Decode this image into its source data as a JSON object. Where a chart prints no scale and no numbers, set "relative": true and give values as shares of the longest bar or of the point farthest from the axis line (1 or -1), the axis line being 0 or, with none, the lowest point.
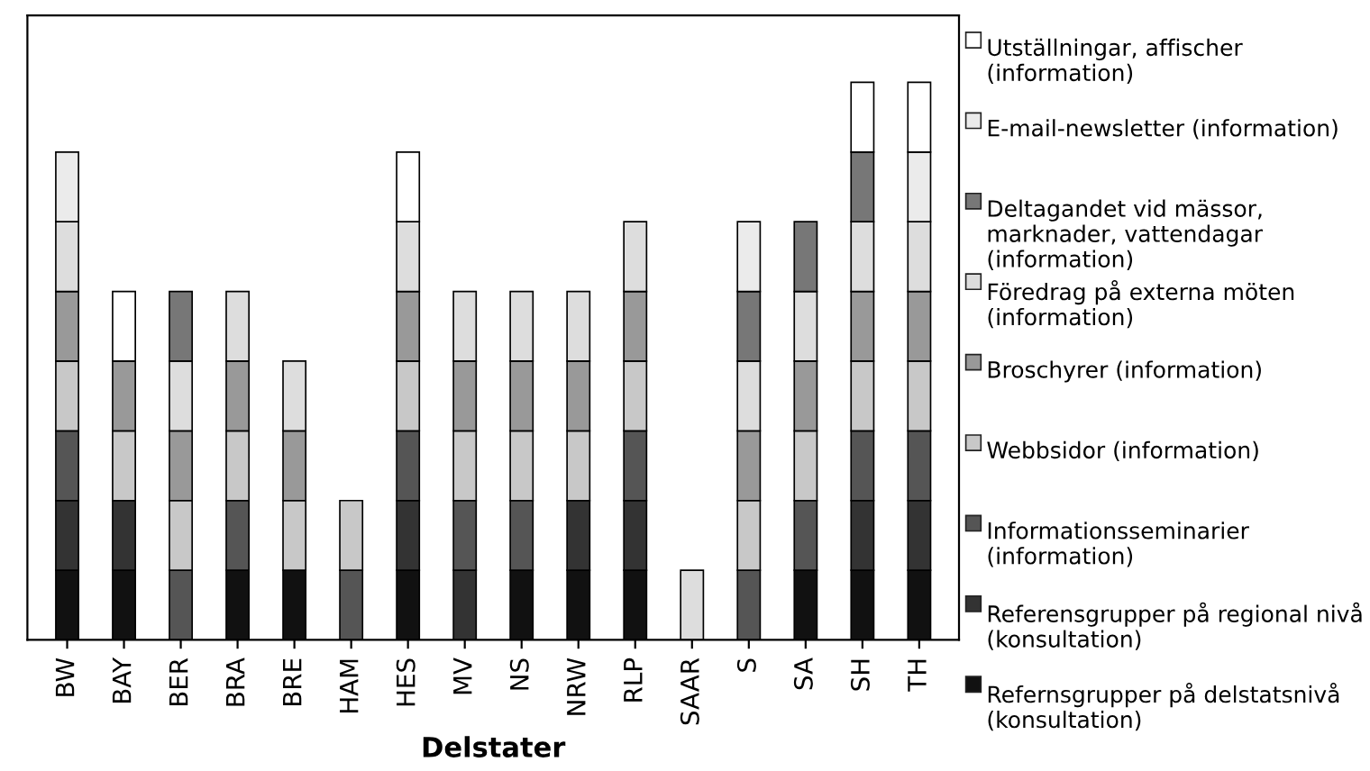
{
  "chart_data": {
    "type": "bar",
    "stacked": true,
    "relative": true,
    "xlabel": "Delstater",
    "legend": "right",
    "grid": false,
    "categories": [
      "BW",
      "BAY",
      "BER",
      "BRA",
      "BRE",
      "HAM",
      "HES",
      "MV",
      "NS",
      "NRW",
      "RLP",
      "SAAR",
      "S",
      "SA",
      "SH",
      "TH"
    ],
    "series": [
      {
        "name": "Refernsgrupper på delstatsnivå (konsultation)",
        "color": "#111111",
        "values": [
          0.125,
          0.125,
          0,
          0.125,
          0.125,
          0,
          0.125,
          0,
          0.125,
          0.125,
          0.125,
          0,
          0,
          0.125,
          0.125,
          0.125
        ]
      },
      {
        "name": "Referensgrupper på regional nivå (konsultation)",
        "color": "#333333",
        "values": [
          0.125,
          0.125,
          0,
          0,
          0,
          0,
          0.125,
          0.125,
          0,
          0.125,
          0.125,
          0,
          0,
          0,
          0.125,
          0.125
        ]
      },
      {
        "name": "Informationsseminarier (information)",
        "color": "#555555",
        "values": [
          0.125,
          0,
          0.125,
          0.125,
          0,
          0.125,
          0.125,
          0.125,
          0.125,
          0,
          0.125,
          0,
          0.125,
          0.125,
          0.125,
          0.125
        ]
      },
      {
        "name": "Webbsidor (information)",
        "color": "#c8c8c8",
        "values": [
          0.125,
          0.125,
          0.125,
          0.125,
          0.125,
          0.125,
          0.125,
          0.125,
          0.125,
          0.125,
          0.125,
          0,
          0.125,
          0.125,
          0.125,
          0.125
        ]
      },
      {
        "name": "Broschyrer (information)",
        "color": "#999999",
        "values": [
          0.125,
          0.125,
          0.125,
          0.125,
          0.125,
          0,
          0.125,
          0.125,
          0.125,
          0.125,
          0.125,
          0,
          0.125,
          0.125,
          0.125,
          0.125
        ]
      },
      {
        "name": "Föredrag på externa möten (information)",
        "color": "#dddddd",
        "values": [
          0.125,
          0,
          0.125,
          0.125,
          0.125,
          0,
          0.125,
          0.125,
          0.125,
          0.125,
          0.125,
          0.125,
          0.125,
          0.125,
          0.125,
          0.125
        ]
      },
      {
        "name": "Deltagandet vid mässor, marknader, vattendagar (information)",
        "color": "#777777",
        "values": [
          0,
          0,
          0.125,
          0,
          0,
          0,
          0,
          0,
          0,
          0,
          0,
          0,
          0.125,
          0.125,
          0.125,
          0
        ]
      },
      {
        "name": "E-mail-newsletter (information)",
        "color": "#ebebeb",
        "values": [
          0.125,
          0,
          0,
          0,
          0,
          0,
          0,
          0,
          0,
          0,
          0,
          0,
          0.125,
          0,
          0,
          0.125
        ]
      },
      {
        "name": "Utställningar, affischer (information)",
        "color": "#ffffff",
        "values": [
          0,
          0.125,
          0,
          0,
          0,
          0,
          0.125,
          0,
          0,
          0,
          0,
          0,
          0,
          0,
          0.125,
          0.125
        ]
      }
    ]
  }
}
